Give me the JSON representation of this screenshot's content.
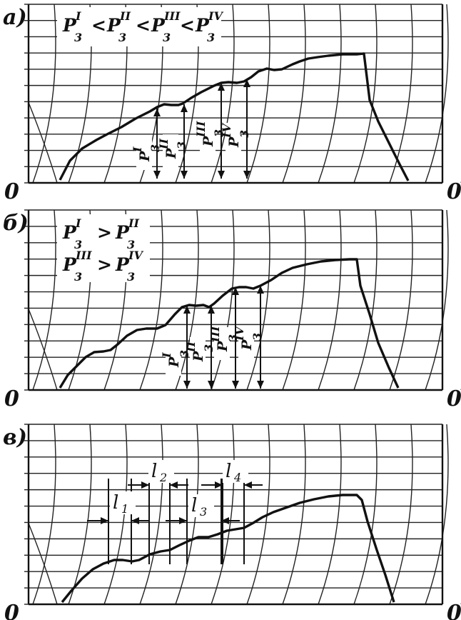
{
  "panels": [
    {
      "label": "а)",
      "left_zero": "0",
      "right_zero": "0",
      "inequality_lines": [
        {
          "p1": "P",
          "s1": "3",
          "sup1": "I",
          "op1": "<",
          "p2": "P",
          "s2": "3",
          "sup2": "II",
          "op2": "<",
          "p3": "P",
          "s3": "3",
          "sup3": "III",
          "op3": "<",
          "p4": "P",
          "s4": "3",
          "sup4": "IV"
        }
      ],
      "pressure_labels": [
        {
          "p": "P",
          "sub": "3",
          "sup": "I"
        },
        {
          "p": "P",
          "sub": "3",
          "sup": "II"
        },
        {
          "p": "P",
          "sub": "3",
          "sup": "III"
        },
        {
          "p": "P",
          "sub": "3",
          "sup": "IV"
        }
      ]
    },
    {
      "label": "б)",
      "left_zero": "0",
      "right_zero": "0",
      "inequality_lines": [
        {
          "p1": "P",
          "s1": "3",
          "sup1": "I",
          "op1": ">",
          "p2": "P",
          "s2": "3",
          "sup2": "II"
        },
        {
          "p1": "P",
          "s1": "3",
          "sup1": "III",
          "op1": ">",
          "p2": "P",
          "s2": "3",
          "sup2": "IV"
        }
      ],
      "pressure_labels": [
        {
          "p": "P",
          "sub": "3",
          "sup": "I"
        },
        {
          "p": "P",
          "sub": "3",
          "sup": "II"
        },
        {
          "p": "P",
          "sub": "3",
          "sup": "III"
        },
        {
          "p": "P",
          "sub": "3",
          "sup": "IV"
        }
      ]
    },
    {
      "label": "в)",
      "left_zero": "0",
      "right_zero": "0",
      "intervals": [
        {
          "l": "l",
          "sub": "1"
        },
        {
          "l": "l",
          "sub": "2"
        },
        {
          "l": "l",
          "sub": "3"
        },
        {
          "l": "l",
          "sub": "4"
        }
      ]
    }
  ]
}
